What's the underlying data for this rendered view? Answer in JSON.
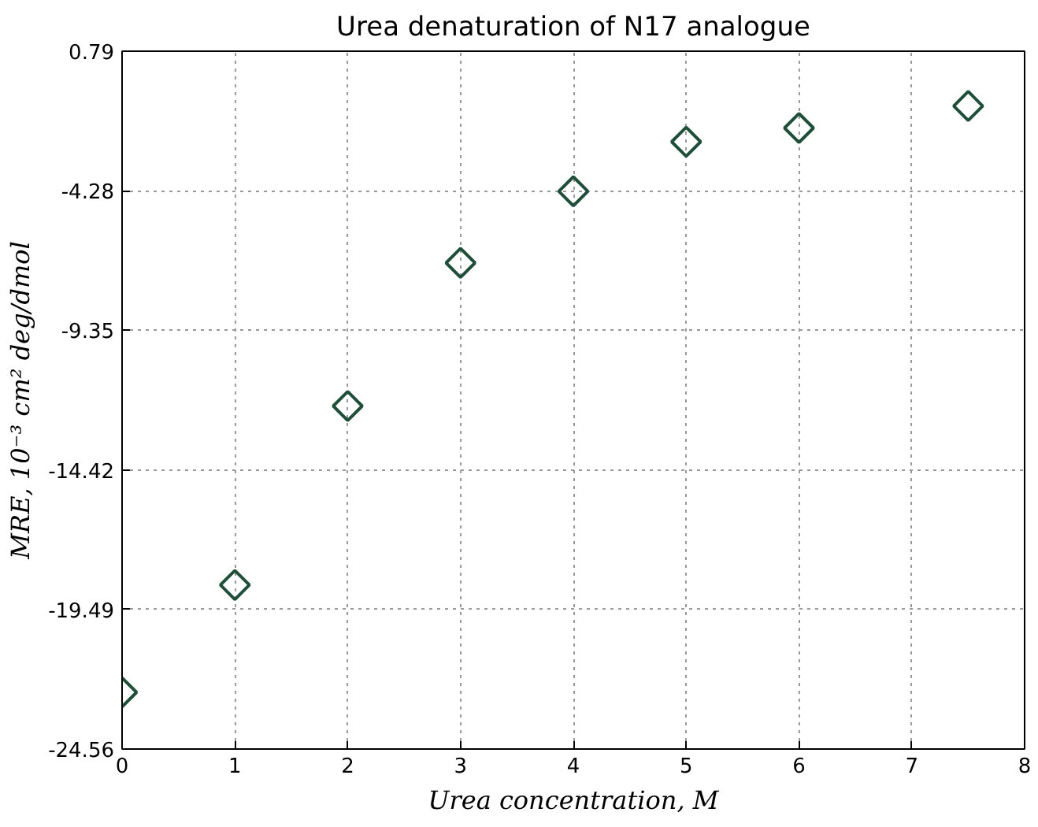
{
  "chart_data": {
    "type": "scatter",
    "title": "Urea denaturation of N17 analogue",
    "xlabel": "Urea concentration, M",
    "ylabel": "MRE, 10⁻³ cm² deg/dmol",
    "x": [
      0,
      1,
      2,
      3,
      4,
      5,
      6,
      7.5
    ],
    "series": [
      {
        "color": "#1f4f3a",
        "values": [
          -22.5,
          -18.6,
          -12.1,
          -6.9,
          -4.3,
          -2.5,
          -2.0,
          -1.2
        ]
      }
    ],
    "xlim": [
      0,
      8
    ],
    "xticks": [
      0,
      1,
      2,
      3,
      4,
      5,
      6,
      7,
      8
    ],
    "ylim": [
      -24.56,
      0.79
    ],
    "yticks": [
      -24.56,
      -19.49,
      -14.42,
      -9.35,
      -4.28,
      0.79
    ],
    "grid": true,
    "marker": "diamond"
  }
}
